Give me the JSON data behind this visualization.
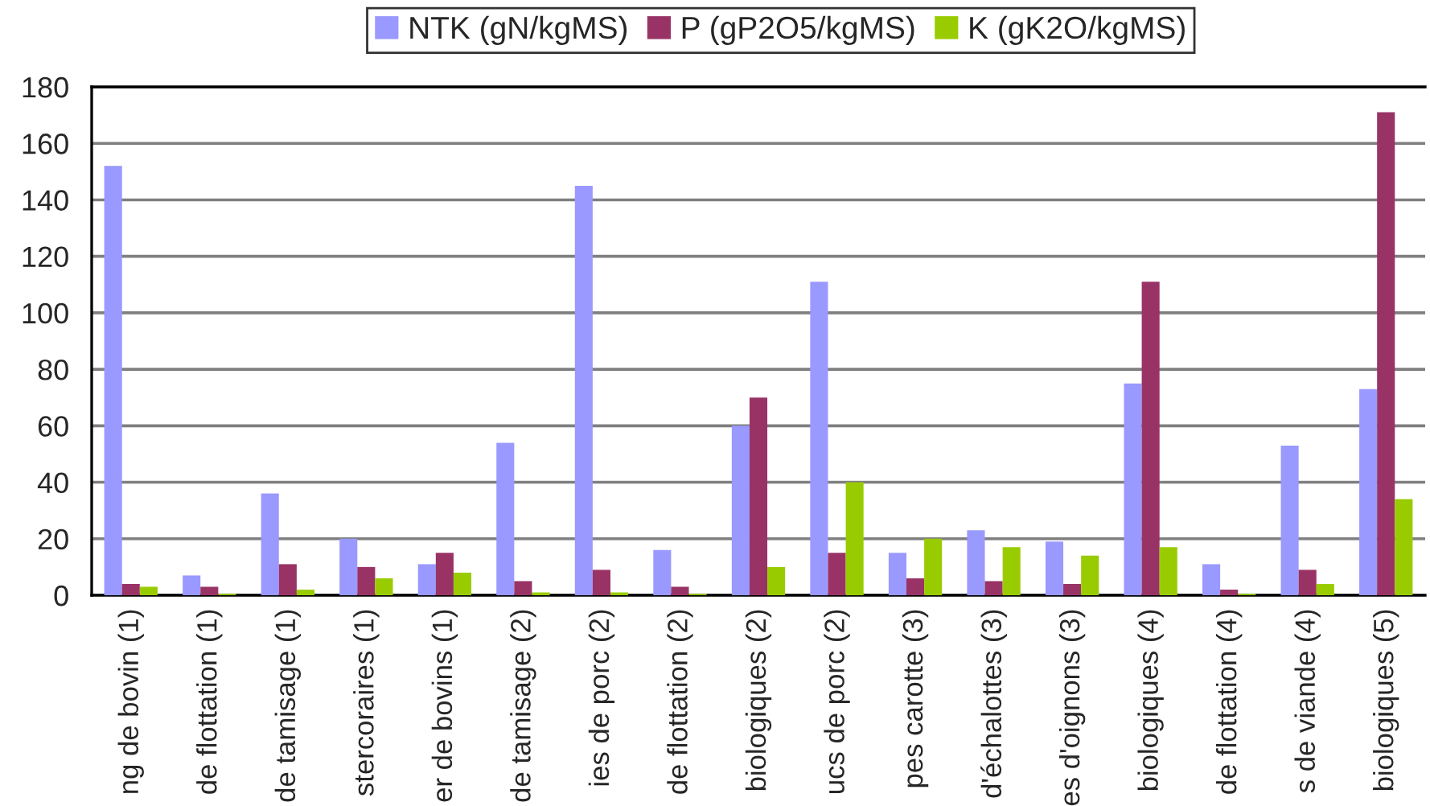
{
  "chart_data": {
    "type": "bar",
    "categories": [
      "ng de bovin (1)",
      "de flottation (1)",
      "de tamisage (1)",
      "stercoraires (1)",
      "er de bovins (1)",
      "de tamisage (2)",
      "ies de porc (2)",
      "de flottation (2)",
      "biologiques (2)",
      "ucs de porc (2)",
      "pes carotte (3)",
      "d'échalottes (3)",
      "es d'oignons (3)",
      "biologiques (4)",
      "de flottation (4)",
      "s de viande (4)",
      "biologiques (5)"
    ],
    "series": [
      {
        "name": "NTK (gN/kgMS)",
        "color": "#9999ff",
        "values": [
          152,
          7,
          36,
          20,
          11,
          54,
          145,
          16,
          60,
          111,
          15,
          23,
          19,
          75,
          11,
          53,
          73
        ]
      },
      {
        "name": "P (gP2O5/kgMS)",
        "color": "#993366",
        "values": [
          4,
          3,
          11,
          10,
          15,
          5,
          9,
          3,
          70,
          15,
          6,
          5,
          4,
          111,
          2,
          9,
          171
        ]
      },
      {
        "name": "K (gK2O/kgMS)",
        "color": "#99cc00",
        "values": [
          3,
          0.5,
          2,
          6,
          8,
          1,
          1,
          0.5,
          10,
          40,
          20,
          17,
          14,
          17,
          0.5,
          4,
          34
        ]
      }
    ],
    "ylim": [
      0,
      180
    ],
    "yticks": [
      0,
      20,
      40,
      60,
      80,
      100,
      120,
      140,
      160,
      180
    ],
    "grid": "y",
    "legend": "top"
  }
}
